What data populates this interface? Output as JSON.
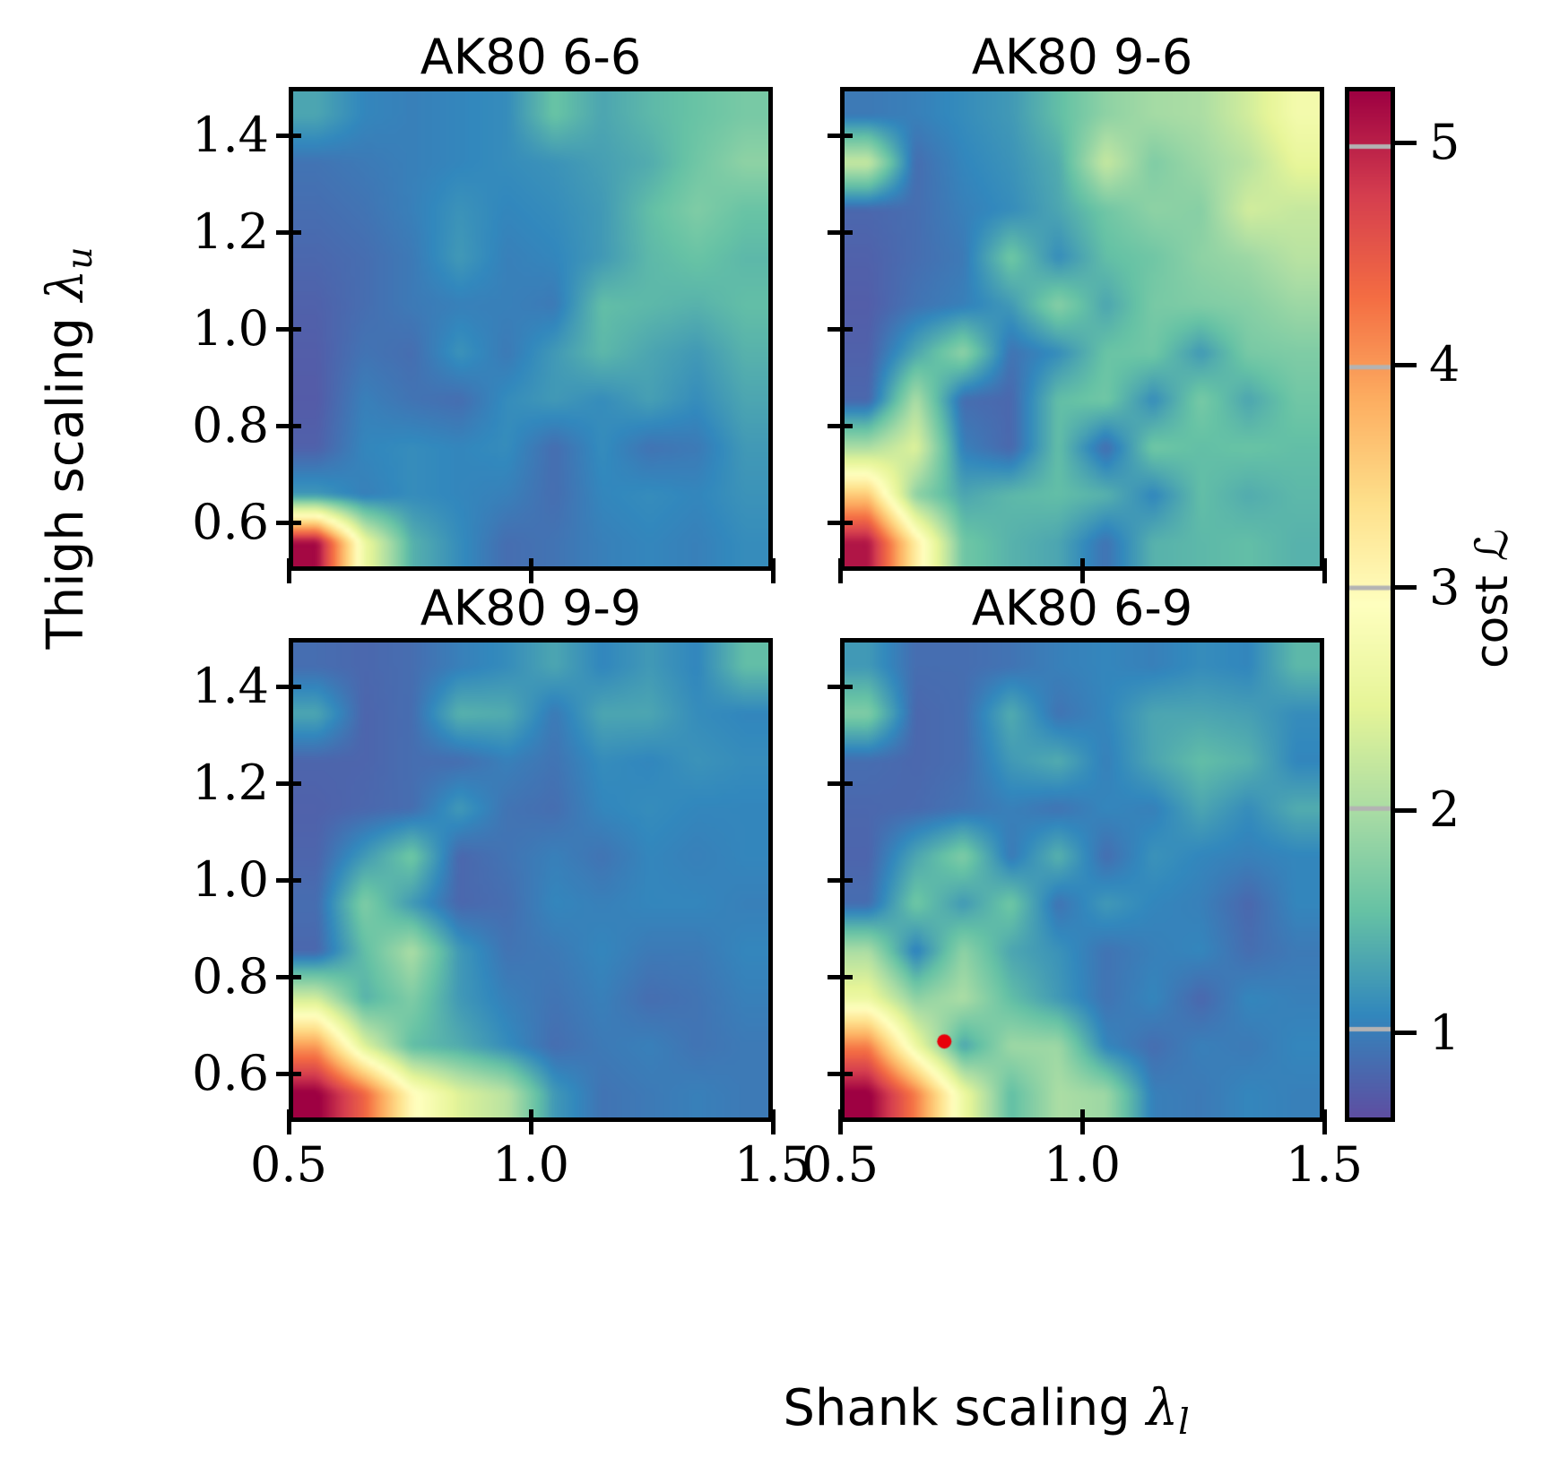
{
  "figure": {
    "x_axis_label": {
      "text": "Shank scaling",
      "symbol": "λ",
      "subscript": "l"
    },
    "y_axis_label": {
      "text": "Thigh scaling",
      "symbol": "λ",
      "subscript": "u"
    },
    "colorbar_label": {
      "text": "cost",
      "symbol": "ℒ"
    },
    "x_tick_labels": [
      "0.5",
      "1.0",
      "1.5"
    ],
    "y_tick_labels": [
      "1.4",
      "1.2",
      "1.0",
      "0.8",
      "0.6"
    ],
    "colorbar_tick_labels": [
      "5",
      "4",
      "3",
      "2",
      "1"
    ]
  },
  "chart_data": {
    "type": "heatmap",
    "subplot_grid": "2x2",
    "x_range": [
      0.5,
      1.5
    ],
    "y_range": [
      0.5,
      1.5
    ],
    "x_ticks": [
      0.5,
      1.0,
      1.5
    ],
    "y_ticks": [
      1.4,
      1.2,
      1.0,
      0.8,
      0.6
    ],
    "colorbar": {
      "label": "cost ℒ",
      "ticks": [
        5,
        4,
        3,
        2,
        1
      ],
      "vmin": 0.6,
      "vmax": 5.25,
      "tick_line_color": "#b3b3b3"
    },
    "colormap": "Spectral_r",
    "colormap_stops": [
      "#5e4fa2",
      "#3288bd",
      "#66c2a5",
      "#abdda4",
      "#e6f598",
      "#ffffbf",
      "#fee08b",
      "#fdae61",
      "#f46d43",
      "#d53e4f",
      "#9e0142"
    ],
    "grid_note": "approximate cost values sampled on a 10x10 grid (rows top y=1.5 to bottom y=0.5, cols left x=0.5 to right x=1.5)",
    "subplots": [
      {
        "title": "AK80 6-6",
        "values": [
          [
            1.3,
            1.05,
            1.0,
            1.05,
            1.1,
            1.55,
            1.3,
            1.45,
            1.55,
            1.65
          ],
          [
            0.9,
            0.95,
            1.0,
            1.05,
            1.1,
            1.15,
            1.25,
            1.35,
            1.6,
            1.8
          ],
          [
            0.85,
            0.9,
            1.0,
            1.15,
            1.05,
            1.1,
            1.2,
            1.5,
            1.7,
            1.55
          ],
          [
            0.8,
            0.85,
            0.95,
            1.2,
            1.0,
            1.05,
            1.2,
            1.45,
            1.55,
            1.45
          ],
          [
            0.75,
            0.85,
            0.95,
            1.0,
            1.0,
            0.95,
            1.5,
            1.45,
            1.4,
            1.5
          ],
          [
            0.72,
            0.9,
            0.85,
            1.15,
            0.95,
            1.2,
            1.45,
            1.3,
            1.2,
            1.4
          ],
          [
            0.7,
            1.0,
            0.9,
            0.85,
            1.1,
            1.2,
            1.1,
            1.25,
            1.1,
            1.3
          ],
          [
            0.75,
            1.05,
            1.1,
            1.05,
            1.1,
            0.85,
            1.1,
            0.9,
            0.95,
            1.2
          ],
          [
            1.2,
            1.0,
            1.1,
            1.05,
            1.0,
            0.85,
            1.05,
            1.1,
            1.05,
            1.15
          ],
          [
            5.2,
            2.6,
            1.4,
            1.1,
            0.85,
            0.9,
            1.0,
            1.05,
            1.0,
            1.1
          ]
        ]
      },
      {
        "title": "AK80 9-6",
        "values": [
          [
            0.95,
            1.0,
            1.1,
            1.2,
            1.5,
            1.8,
            1.95,
            2.0,
            2.3,
            2.7
          ],
          [
            2.2,
            0.85,
            1.05,
            1.15,
            1.35,
            2.2,
            1.7,
            1.9,
            2.1,
            2.5
          ],
          [
            0.8,
            0.85,
            1.0,
            1.1,
            1.3,
            1.6,
            1.8,
            1.75,
            2.3,
            2.2
          ],
          [
            0.75,
            0.85,
            0.95,
            1.6,
            1.1,
            1.5,
            1.6,
            1.8,
            1.9,
            2.1
          ],
          [
            0.72,
            0.9,
            1.0,
            1.2,
            1.75,
            1.3,
            1.65,
            1.7,
            1.75,
            1.9
          ],
          [
            0.75,
            1.3,
            1.8,
            0.9,
            1.1,
            1.55,
            1.6,
            1.2,
            1.65,
            1.7
          ],
          [
            0.8,
            2.0,
            0.85,
            0.8,
            1.5,
            1.6,
            1.1,
            1.65,
            1.3,
            1.6
          ],
          [
            2.0,
            2.4,
            1.0,
            0.8,
            1.5,
            0.85,
            1.6,
            1.5,
            1.55,
            1.5
          ],
          [
            3.6,
            1.8,
            1.3,
            1.45,
            1.5,
            1.4,
            1.05,
            1.5,
            1.35,
            1.45
          ],
          [
            5.1,
            3.2,
            1.6,
            1.4,
            1.3,
            0.9,
            1.4,
            1.45,
            1.5,
            1.4
          ]
        ]
      },
      {
        "title": "AK80 9-9",
        "values": [
          [
            0.85,
            0.8,
            0.85,
            1.0,
            1.1,
            1.3,
            1.05,
            1.2,
            1.05,
            1.5
          ],
          [
            1.3,
            0.78,
            0.85,
            1.4,
            1.35,
            0.95,
            1.3,
            1.3,
            1.1,
            1.05
          ],
          [
            0.78,
            0.78,
            0.85,
            0.85,
            1.0,
            0.9,
            1.1,
            1.05,
            1.15,
            1.1
          ],
          [
            0.75,
            0.8,
            0.85,
            1.2,
            0.9,
            0.85,
            1.05,
            1.1,
            1.05,
            1.05
          ],
          [
            0.78,
            1.2,
            1.6,
            0.8,
            0.9,
            1.0,
            0.9,
            1.05,
            1.0,
            1.05
          ],
          [
            0.85,
            1.7,
            1.2,
            0.8,
            0.85,
            1.05,
            1.0,
            1.05,
            1.05,
            1.0
          ],
          [
            0.8,
            1.5,
            2.0,
            1.2,
            0.9,
            0.95,
            1.05,
            0.95,
            0.95,
            1.05
          ],
          [
            2.3,
            1.4,
            1.7,
            1.2,
            1.0,
            0.9,
            1.0,
            0.85,
            0.9,
            1.0
          ],
          [
            4.0,
            2.4,
            1.5,
            1.35,
            1.1,
            0.85,
            0.95,
            1.0,
            0.9,
            0.95
          ],
          [
            5.3,
            4.4,
            3.0,
            2.4,
            2.1,
            1.2,
            0.9,
            0.95,
            1.0,
            0.95
          ]
        ]
      },
      {
        "title": "AK80 6-9",
        "marker": {
          "x": 0.71,
          "y": 0.66,
          "color": "#e8000b",
          "shape": "dot"
        },
        "values": [
          [
            1.2,
            0.85,
            0.85,
            0.9,
            1.0,
            1.05,
            1.0,
            1.1,
            1.05,
            1.45
          ],
          [
            1.7,
            0.8,
            0.85,
            1.35,
            0.9,
            1.05,
            1.3,
            1.3,
            1.25,
            1.1
          ],
          [
            0.85,
            0.8,
            0.85,
            1.2,
            1.35,
            1.0,
            1.3,
            1.5,
            1.4,
            1.05
          ],
          [
            0.8,
            0.82,
            0.9,
            1.0,
            0.9,
            1.05,
            1.0,
            1.3,
            1.1,
            1.35
          ],
          [
            0.78,
            1.3,
            1.7,
            0.95,
            1.4,
            0.85,
            1.15,
            1.05,
            1.0,
            1.05
          ],
          [
            0.85,
            1.6,
            1.2,
            1.6,
            0.9,
            1.2,
            1.05,
            1.0,
            0.8,
            1.05
          ],
          [
            2.0,
            1.0,
            1.8,
            1.3,
            1.15,
            0.9,
            1.0,
            1.05,
            0.85,
            0.95
          ],
          [
            2.6,
            1.8,
            2.0,
            1.5,
            1.2,
            0.9,
            1.05,
            0.8,
            1.05,
            1.0
          ],
          [
            4.2,
            2.6,
            1.3,
            1.9,
            1.9,
            1.05,
            0.85,
            1.0,
            0.95,
            1.05
          ],
          [
            5.3,
            4.2,
            2.6,
            1.5,
            2.0,
            1.9,
            1.0,
            0.95,
            1.05,
            1.0
          ]
        ]
      }
    ]
  }
}
